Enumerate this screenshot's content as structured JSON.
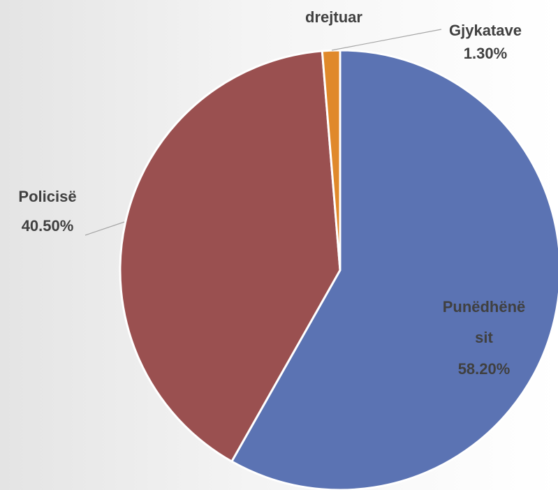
{
  "chart_data": {
    "type": "pie",
    "title": "drejtuar",
    "categories": [
      "Punëdhënësit",
      "Policisë",
      "Gjykatave"
    ],
    "values": [
      58.2,
      40.5,
      1.3
    ],
    "value_labels": [
      "58.20%",
      "40.50%",
      "1.30%"
    ],
    "colors": [
      "#5b73b3",
      "#9a5050",
      "#e0892b"
    ]
  }
}
